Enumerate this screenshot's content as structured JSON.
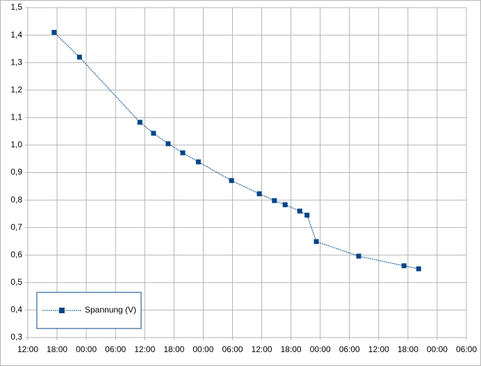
{
  "chart_data": {
    "type": "line",
    "x": [
      5.4,
      10.6,
      23.0,
      25.8,
      28.8,
      31.8,
      35.0,
      41.8,
      47.5,
      50.6,
      52.8,
      55.8,
      57.3,
      59.2,
      67.9,
      77.2,
      80.2
    ],
    "series": [
      {
        "name": "Spannung (V)",
        "color": "#004586",
        "values": [
          1.41,
          1.32,
          1.083,
          1.043,
          1.005,
          0.972,
          0.939,
          0.871,
          0.823,
          0.798,
          0.783,
          0.76,
          0.745,
          0.649,
          0.596,
          0.561,
          0.55
        ]
      }
    ],
    "xlim": [
      0,
      90
    ],
    "xticks": [
      {
        "value": 0,
        "label": "12:00"
      },
      {
        "value": 6,
        "label": "18:00"
      },
      {
        "value": 12,
        "label": "00:00"
      },
      {
        "value": 18,
        "label": "06:00"
      },
      {
        "value": 24,
        "label": "12:00"
      },
      {
        "value": 30,
        "label": "18:00"
      },
      {
        "value": 36,
        "label": "00:00"
      },
      {
        "value": 42,
        "label": "06:00"
      },
      {
        "value": 48,
        "label": "12:00"
      },
      {
        "value": 54,
        "label": "18:00"
      },
      {
        "value": 60,
        "label": "00:00"
      },
      {
        "value": 66,
        "label": "06:00"
      },
      {
        "value": 72,
        "label": "12:00"
      },
      {
        "value": 78,
        "label": "18:00"
      },
      {
        "value": 84,
        "label": "00:00"
      },
      {
        "value": 90,
        "label": "06:00"
      }
    ],
    "ylim": [
      0.3,
      1.5
    ],
    "yticks": [
      {
        "value": 0.3,
        "label": "0,3"
      },
      {
        "value": 0.4,
        "label": "0,4"
      },
      {
        "value": 0.5,
        "label": "0,5"
      },
      {
        "value": 0.6,
        "label": "0,6"
      },
      {
        "value": 0.7,
        "label": "0,7"
      },
      {
        "value": 0.8,
        "label": "0,8"
      },
      {
        "value": 0.9,
        "label": "0,9"
      },
      {
        "value": 1.0,
        "label": "1,0"
      },
      {
        "value": 1.1,
        "label": "1,1"
      },
      {
        "value": 1.2,
        "label": "1,2"
      },
      {
        "value": 1.3,
        "label": "1,3"
      },
      {
        "value": 1.4,
        "label": "1,4"
      },
      {
        "value": 1.5,
        "label": "1,5"
      }
    ],
    "grid": true,
    "legend": "bottom-left"
  }
}
